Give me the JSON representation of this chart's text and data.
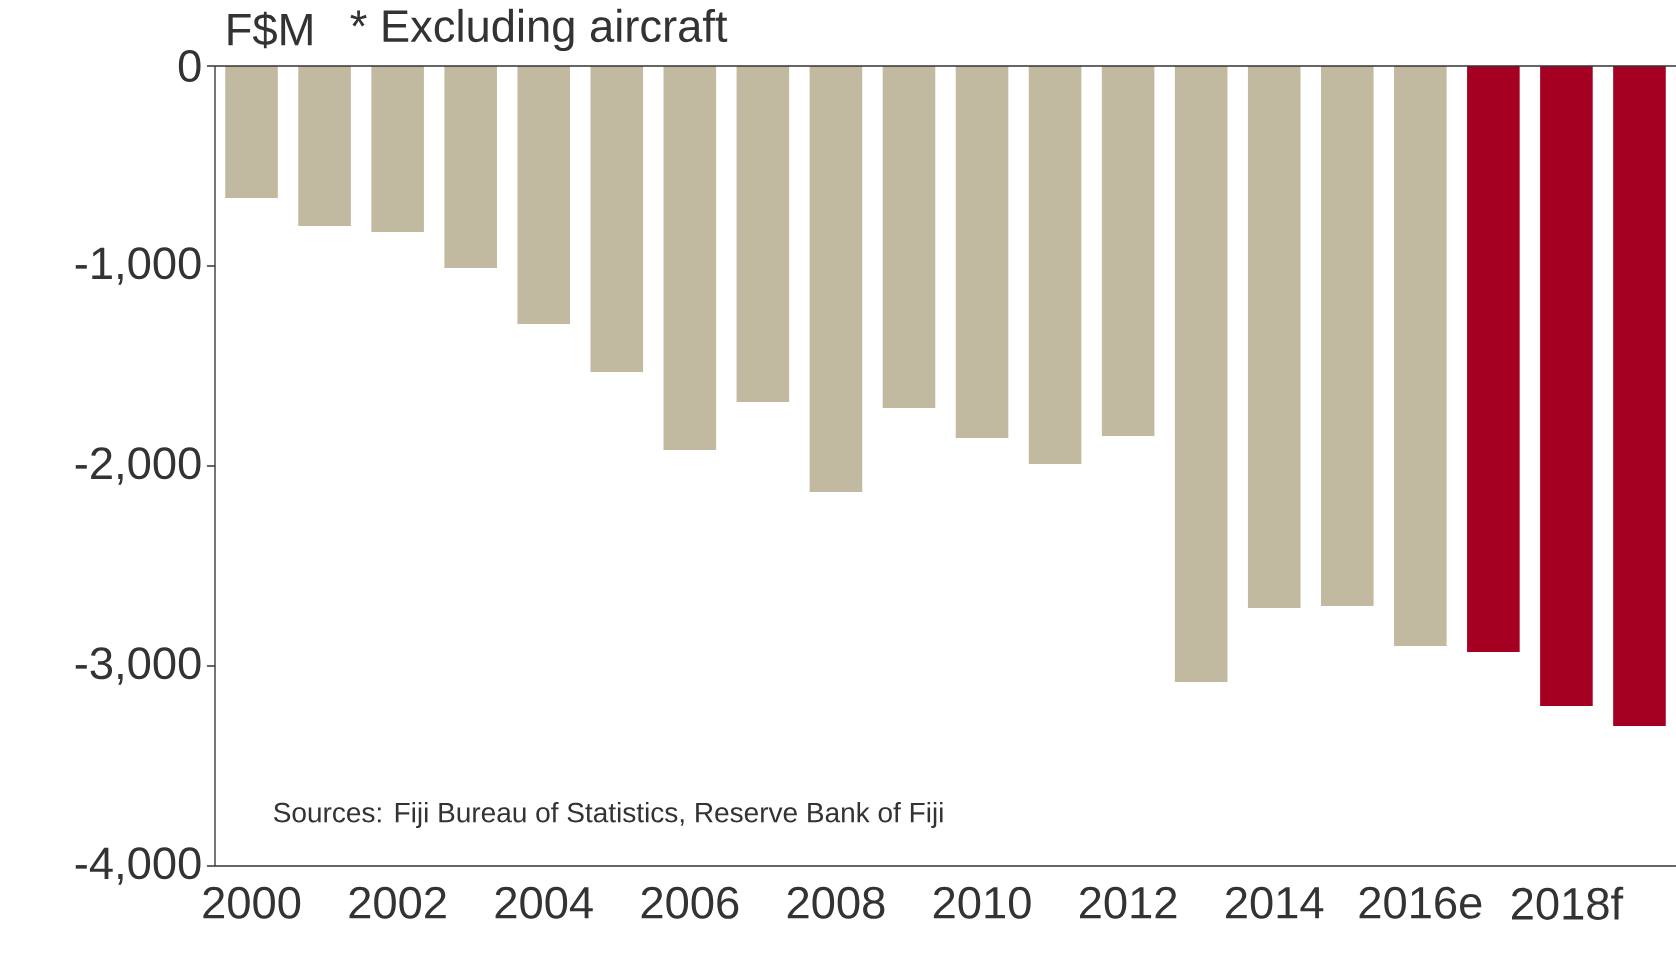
{
  "chart_data": {
    "type": "bar",
    "ylabel": "F$M",
    "annotations": [
      "* Excluding aircraft",
      "Sources: Fiji Bureau of Statistics, Reserve Bank of Fiji"
    ],
    "categories": [
      "2000",
      null,
      "2002",
      null,
      "2004",
      null,
      "2006",
      null,
      "2008",
      null,
      "2010",
      null,
      "2012",
      null,
      "2014",
      null,
      "2016e",
      null,
      "2018f",
      null
    ],
    "values": [
      -660,
      -800,
      -830,
      -1010,
      -1290,
      -1530,
      -1920,
      -1680,
      -2130,
      -1710,
      -1860,
      -1990,
      -1850,
      -3080,
      -2710,
      -2700,
      -2900,
      -2930,
      -3200,
      -3300
    ],
    "colors": [
      "#c2b9a1",
      "#c2b9a1",
      "#c2b9a1",
      "#c2b9a1",
      "#c2b9a1",
      "#c2b9a1",
      "#c2b9a1",
      "#c2b9a1",
      "#c2b9a1",
      "#c2b9a1",
      "#c2b9a1",
      "#c2b9a1",
      "#c2b9a1",
      "#c2b9a1",
      "#c2b9a1",
      "#c2b9a1",
      "#c2b9a1",
      "#a50021",
      "#a50021",
      "#a50021"
    ],
    "ylim": [
      -4000,
      0
    ],
    "yticks": [
      0,
      {
        "value": -1000,
        "label": "-1,000"
      },
      {
        "value": -2000,
        "label": "-2,000"
      },
      {
        "value": -3000,
        "label": "-3,000"
      },
      {
        "value": -4000,
        "label": "-4,000"
      }
    ],
    "grid": false
  }
}
